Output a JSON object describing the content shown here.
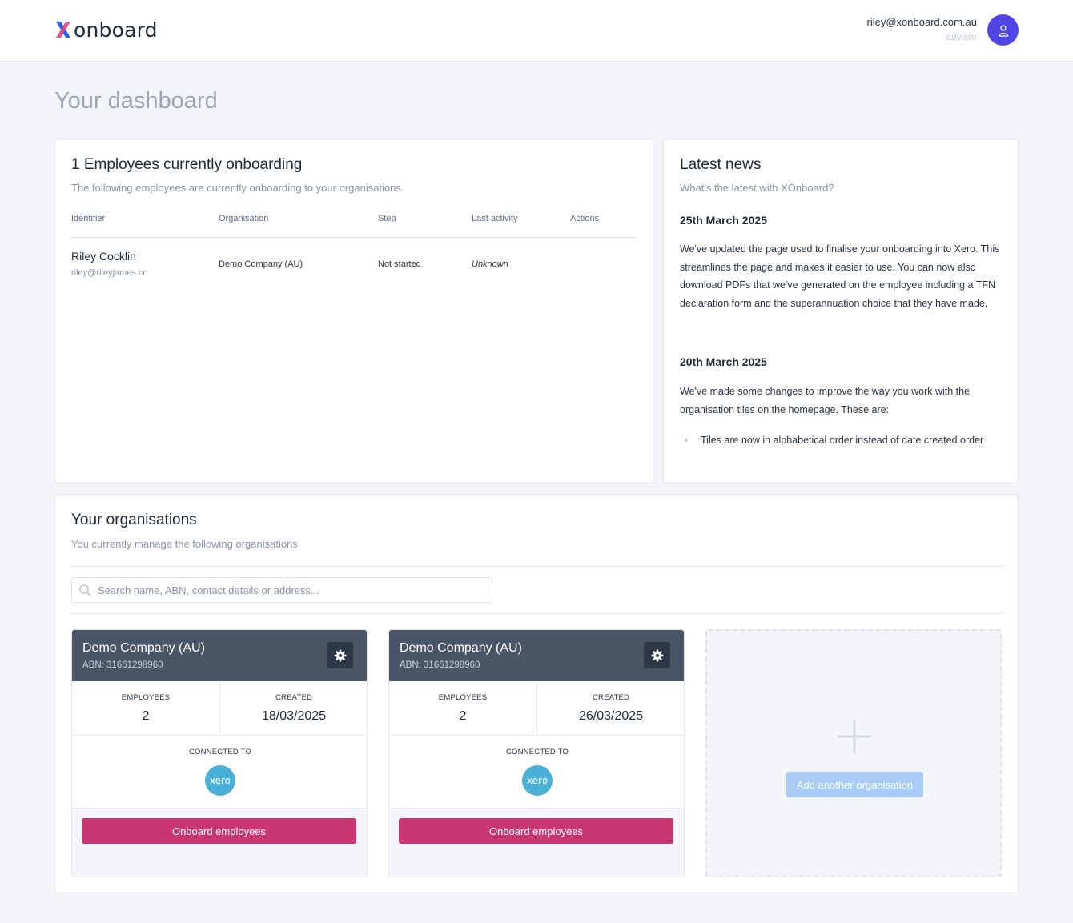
{
  "header": {
    "logo_text": "onboard",
    "user_email": "riley@xonboard.com.au",
    "user_role": "advisor"
  },
  "page_title": "Your dashboard",
  "onboarding": {
    "title": "1 Employees currently onboarding",
    "subtitle": "The following employees are currently onboarding to your organisations.",
    "columns": [
      "Identifier",
      "Organisation",
      "Step",
      "Last activity",
      "Actions"
    ],
    "rows": [
      {
        "name": "Riley Cocklin",
        "email": "riley@rileyjames.co",
        "organisation": "Demo Company (AU)",
        "step": "Not started",
        "last_activity": "Unknown"
      }
    ]
  },
  "news": {
    "title": "Latest news",
    "subtitle": "What's the latest with XOnboard?",
    "items": [
      {
        "date": "25th March 2025",
        "body": "We've updated the page used to finalise your onboarding into Xero. This streamlines the page and makes it easier to use. You can now also download PDFs that we've generated on the employee including a TFN declaration form and the superannuation choice that they have made."
      },
      {
        "date": "20th March 2025",
        "body": "We've made some changes to improve the way you work with the organisation tiles on the homepage. These are:",
        "bullets": [
          "Tiles are now in alphabetical order instead of date created order"
        ]
      }
    ]
  },
  "organisations": {
    "title": "Your organisations",
    "subtitle": "You currently manage the following organisations",
    "search_placeholder": "Search name, ABN, contact details or address...",
    "employees_label": "EMPLOYEES",
    "created_label": "CREATED",
    "connected_label": "CONNECTED TO",
    "connection_name": "xero",
    "onboard_label": "Onboard employees",
    "add_label": "Add another organisation",
    "items": [
      {
        "name": "Demo Company (AU)",
        "abn": "ABN: 31661298960",
        "employees": "2",
        "created": "18/03/2025"
      },
      {
        "name": "Demo Company (AU)",
        "abn": "ABN: 31661298960",
        "employees": "2",
        "created": "26/03/2025"
      }
    ]
  },
  "colors": {
    "accent": "#4f46e5",
    "tile_header": "#4a5568",
    "primary_button": "#c83771",
    "xero": "#4ab0d8",
    "add_button": "#a9ccf7"
  }
}
